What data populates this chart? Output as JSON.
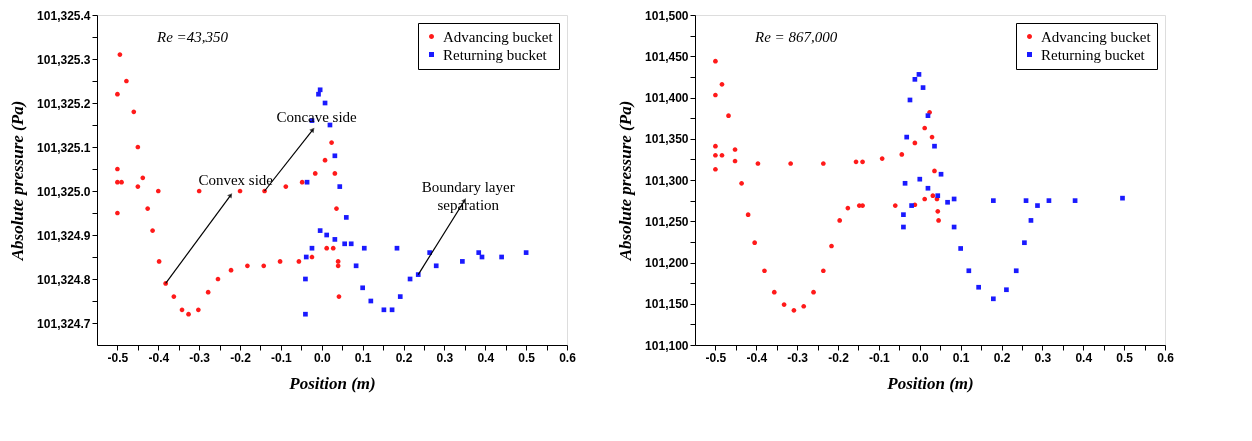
{
  "chart_data": [
    {
      "type": "scatter",
      "xlabel": "Position (m)",
      "ylabel": "Absolute pressure (Pa)",
      "xlim": [
        -0.55,
        0.6
      ],
      "ylim": [
        101324.65,
        101325.4
      ],
      "xticks": [
        {
          "value": -0.5,
          "label": "-0.5"
        },
        {
          "value": -0.45,
          "label": null
        },
        {
          "value": -0.4,
          "label": "-0.4"
        },
        {
          "value": -0.35,
          "label": null
        },
        {
          "value": -0.3,
          "label": "-0.3"
        },
        {
          "value": -0.25,
          "label": null
        },
        {
          "value": -0.2,
          "label": "-0.2"
        },
        {
          "value": -0.15,
          "label": null
        },
        {
          "value": -0.1,
          "label": "-0.1"
        },
        {
          "value": -0.05,
          "label": null
        },
        {
          "value": 0,
          "label": "0.0"
        },
        {
          "value": 0.05,
          "label": null
        },
        {
          "value": 0.1,
          "label": "0.1"
        },
        {
          "value": 0.15,
          "label": null
        },
        {
          "value": 0.2,
          "label": "0.2"
        },
        {
          "value": 0.25,
          "label": null
        },
        {
          "value": 0.3,
          "label": "0.3"
        },
        {
          "value": 0.35,
          "label": null
        },
        {
          "value": 0.4,
          "label": "0.4"
        },
        {
          "value": 0.45,
          "label": null
        },
        {
          "value": 0.5,
          "label": "0.5"
        },
        {
          "value": 0.55,
          "label": null
        },
        {
          "value": 0.6,
          "label": "0.6"
        }
      ],
      "yticks": [
        {
          "value": 101324.7,
          "label": "101,324.7"
        },
        {
          "value": 101324.75,
          "label": null
        },
        {
          "value": 101324.8,
          "label": "101,324.8"
        },
        {
          "value": 101324.85,
          "label": null
        },
        {
          "value": 101324.9,
          "label": "101,324.9"
        },
        {
          "value": 101324.95,
          "label": null
        },
        {
          "value": 101325.0,
          "label": "101,325.0"
        },
        {
          "value": 101325.05,
          "label": null
        },
        {
          "value": 101325.1,
          "label": "101,325.1"
        },
        {
          "value": 101325.15,
          "label": null
        },
        {
          "value": 101325.2,
          "label": "101,325.2"
        },
        {
          "value": 101325.25,
          "label": null
        },
        {
          "value": 101325.3,
          "label": "101,325.3"
        },
        {
          "value": 101325.35,
          "label": null
        },
        {
          "value": 101325.4,
          "label": "101,325.4"
        }
      ],
      "grid": false,
      "legend": "top right",
      "annotations": [
        "Re =43,350",
        {
          "text": "Concave side",
          "x": -0.14,
          "y": 101325.0
        },
        {
          "text": "Convex side",
          "x": -0.382,
          "y": 101324.79
        },
        {
          "text": "Boundary layer separation",
          "x": 0.236,
          "y": 101324.81
        }
      ],
      "series": [
        {
          "name": "Advancing bucket",
          "color": "#ff1a1a",
          "marker": "circle",
          "x": [
            -0.5,
            -0.5,
            -0.5,
            -0.494,
            -0.478,
            -0.46,
            -0.45,
            -0.438,
            -0.426,
            -0.414,
            -0.398,
            -0.382,
            -0.362,
            -0.342,
            -0.326,
            -0.302,
            -0.278,
            -0.254,
            -0.222,
            -0.182,
            -0.142,
            -0.102,
            -0.056,
            -0.024,
            0.012,
            0.028,
            0.04,
            0.042,
            -0.5,
            -0.49,
            -0.45,
            -0.4,
            -0.3,
            -0.2,
            -0.14,
            -0.088,
            -0.048,
            -0.016,
            0.008,
            0.024,
            0.032,
            0.036,
            0.04
          ],
          "values": [
            101324.95,
            101325.05,
            101325.22,
            101325.31,
            101325.25,
            101325.18,
            101325.1,
            101325.03,
            101324.96,
            101324.91,
            101324.84,
            101324.79,
            101324.76,
            101324.73,
            101324.72,
            101324.73,
            101324.77,
            101324.8,
            101324.82,
            101324.83,
            101324.83,
            101324.84,
            101324.84,
            101324.85,
            101324.87,
            101324.87,
            101324.83,
            101324.76,
            101325.02,
            101325.02,
            101325.01,
            101325.0,
            101325.0,
            101325.0,
            101325.0,
            101325.01,
            101325.02,
            101325.04,
            101325.07,
            101325.11,
            101325.04,
            101324.96,
            101324.84
          ]
        },
        {
          "name": "Returning bucket",
          "color": "#1a1aff",
          "marker": "square",
          "x": [
            -0.04,
            -0.038,
            -0.036,
            -0.024,
            -0.008,
            -0.004,
            0.008,
            0.02,
            0.032,
            0.044,
            0.06,
            0.072,
            0.084,
            0.1,
            0.12,
            0.152,
            0.172,
            0.192,
            0.216,
            0.236,
            0.28,
            0.344,
            0.392,
            0.44,
            0.5,
            -0.04,
            -0.024,
            -0.004,
            0.012,
            0.032,
            0.056,
            0.104,
            0.184,
            0.264,
            0.384
          ],
          "values": [
            101324.72,
            101324.85,
            101325.02,
            101325.16,
            101325.22,
            101325.23,
            101325.2,
            101325.15,
            101325.08,
            101325.01,
            101324.94,
            101324.88,
            101324.83,
            101324.78,
            101324.75,
            101324.73,
            101324.73,
            101324.76,
            101324.8,
            101324.81,
            101324.83,
            101324.84,
            101324.85,
            101324.85,
            101324.86,
            101324.8,
            101324.87,
            101324.91,
            101324.9,
            101324.89,
            101324.88,
            101324.87,
            101324.87,
            101324.86,
            101324.86
          ]
        }
      ]
    },
    {
      "type": "scatter",
      "xlabel": "Position (m)",
      "ylabel": "Absolute pressure (Pa)",
      "xlim": [
        -0.55,
        0.6
      ],
      "ylim": [
        101100,
        101500
      ],
      "xticks": [
        {
          "value": -0.5,
          "label": "-0.5"
        },
        {
          "value": -0.45,
          "label": null
        },
        {
          "value": -0.4,
          "label": "-0.4"
        },
        {
          "value": -0.35,
          "label": null
        },
        {
          "value": -0.3,
          "label": "-0.3"
        },
        {
          "value": -0.25,
          "label": null
        },
        {
          "value": -0.2,
          "label": "-0.2"
        },
        {
          "value": -0.15,
          "label": null
        },
        {
          "value": -0.1,
          "label": "-0.1"
        },
        {
          "value": -0.05,
          "label": null
        },
        {
          "value": 0,
          "label": "0.0"
        },
        {
          "value": 0.05,
          "label": null
        },
        {
          "value": 0.1,
          "label": "0.1"
        },
        {
          "value": 0.15,
          "label": null
        },
        {
          "value": 0.2,
          "label": "0.2"
        },
        {
          "value": 0.25,
          "label": null
        },
        {
          "value": 0.3,
          "label": "0.3"
        },
        {
          "value": 0.35,
          "label": null
        },
        {
          "value": 0.4,
          "label": "0.4"
        },
        {
          "value": 0.45,
          "label": null
        },
        {
          "value": 0.5,
          "label": "0.5"
        },
        {
          "value": 0.55,
          "label": null
        },
        {
          "value": 0.6,
          "label": "0.6"
        }
      ],
      "yticks": [
        {
          "value": 101100,
          "label": "101,100"
        },
        {
          "value": 101125,
          "label": null
        },
        {
          "value": 101150,
          "label": "101,150"
        },
        {
          "value": 101175,
          "label": null
        },
        {
          "value": 101200,
          "label": "101,200"
        },
        {
          "value": 101225,
          "label": null
        },
        {
          "value": 101250,
          "label": "101,250"
        },
        {
          "value": 101275,
          "label": null
        },
        {
          "value": 101300,
          "label": "101,300"
        },
        {
          "value": 101325,
          "label": null
        },
        {
          "value": 101350,
          "label": "101,350"
        },
        {
          "value": 101375,
          "label": null
        },
        {
          "value": 101400,
          "label": "101,400"
        },
        {
          "value": 101425,
          "label": null
        },
        {
          "value": 101450,
          "label": "101,450"
        },
        {
          "value": 101475,
          "label": null
        },
        {
          "value": 101500,
          "label": "101,500"
        }
      ],
      "grid": false,
      "legend": "top right",
      "annotations": [
        "Re = 867,000"
      ],
      "series": [
        {
          "name": "Advancing bucket",
          "color": "#ff1a1a",
          "marker": "circle",
          "x": [
            -0.5,
            -0.5,
            -0.5,
            -0.5,
            -0.484,
            -0.468,
            -0.452,
            -0.436,
            -0.42,
            -0.404,
            -0.38,
            -0.356,
            -0.332,
            -0.308,
            -0.284,
            -0.26,
            -0.236,
            -0.216,
            -0.196,
            -0.176,
            -0.148,
            -0.14,
            -0.06,
            -0.012,
            0.012,
            0.032,
            0.044,
            0.046,
            -0.5,
            -0.484,
            -0.452,
            -0.396,
            -0.316,
            -0.236,
            -0.156,
            -0.14,
            -0.092,
            -0.044,
            -0.012,
            0.012,
            0.024,
            0.03,
            0.036,
            0.042
          ],
          "values": [
            101403,
            101313,
            101330,
            101444,
            101416,
            101378,
            101337,
            101296,
            101258,
            101224,
            101190,
            101164,
            101149,
            101142,
            101147,
            101164,
            101190,
            101220,
            101251,
            101266,
            101269,
            101269,
            101269,
            101270,
            101277,
            101281,
            101262,
            101251,
            101341,
            101330,
            101323,
            101320,
            101320,
            101320,
            101322,
            101322,
            101326,
            101331,
            101345,
            101363,
            101382,
            101352,
            101311,
            101277
          ]
        },
        {
          "name": "Returning bucket",
          "color": "#1a1aff",
          "marker": "square",
          "x": [
            -0.04,
            -0.036,
            -0.032,
            -0.024,
            -0.012,
            -0.002,
            0.008,
            0.02,
            0.036,
            0.052,
            0.068,
            0.084,
            0.1,
            0.12,
            0.144,
            0.18,
            0.212,
            0.236,
            0.256,
            0.272,
            0.288,
            0.316,
            0.38,
            0.496,
            -0.04,
            -0.02,
            0.0,
            0.02,
            0.044,
            0.084,
            0.18,
            0.26
          ],
          "values": [
            101243,
            101296,
            101352,
            101397,
            101422,
            101428,
            101412,
            101378,
            101341,
            101307,
            101273,
            101243,
            101217,
            101190,
            101170,
            101156,
            101167,
            101190,
            101224,
            101251,
            101269,
            101275,
            101275,
            101278,
            101258,
            101269,
            101301,
            101290,
            101281,
            101277,
            101275,
            101275
          ]
        }
      ]
    }
  ]
}
